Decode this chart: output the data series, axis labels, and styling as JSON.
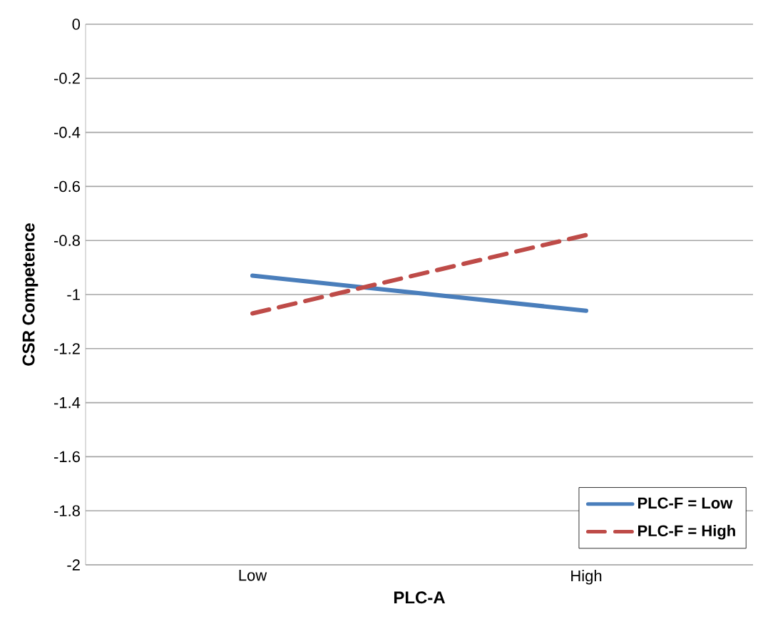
{
  "chart_data": {
    "type": "line",
    "xlabel": "PLC-A",
    "ylabel": "CSR Competence",
    "categories": [
      "Low",
      "High"
    ],
    "series": [
      {
        "name": "PLC-F = Low",
        "color": "#4a7ebb",
        "values": [
          -0.93,
          -1.06
        ],
        "line_style": "solid"
      },
      {
        "name": "PLC-F = High",
        "color": "#be4b48",
        "values": [
          -1.07,
          -0.78
        ],
        "line_style": "dashed"
      }
    ],
    "ylim": [
      -2,
      0
    ],
    "yticks": [
      -2,
      -1.8,
      -1.6,
      -1.4,
      -1.2,
      -1,
      -0.8,
      -0.6,
      -0.4,
      -0.2,
      0
    ],
    "grid": "y",
    "legend": "bottom right",
    "marker": "none"
  }
}
